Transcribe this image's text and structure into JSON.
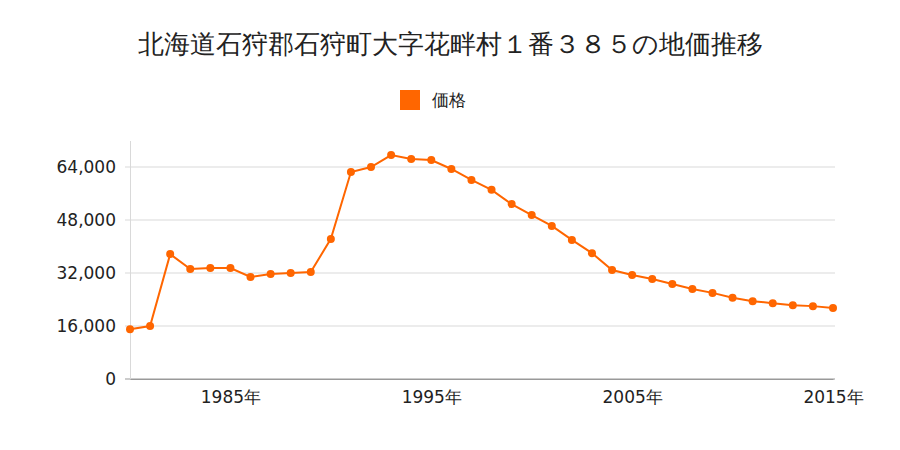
{
  "chart_data": {
    "type": "line",
    "title": "北海道石狩郡石狩町大字花畔村１番３８５の地価推移",
    "x": [
      1980,
      1981,
      1982,
      1983,
      1984,
      1985,
      1986,
      1987,
      1988,
      1989,
      1990,
      1991,
      1992,
      1993,
      1994,
      1995,
      1996,
      1997,
      1998,
      1999,
      2000,
      2001,
      2002,
      2003,
      2004,
      2005,
      2006,
      2007,
      2008,
      2009,
      2010,
      2011,
      2012,
      2013,
      2014,
      2015
    ],
    "series": [
      {
        "name": "価格",
        "color": "#ff6600",
        "marker": "circle",
        "line_style": "solid",
        "values": [
          15000,
          16000,
          37700,
          33200,
          33500,
          33500,
          30800,
          31700,
          32000,
          32300,
          42300,
          62500,
          64000,
          67600,
          66400,
          66100,
          63400,
          60100,
          57100,
          52800,
          49500,
          46200,
          42000,
          38000,
          32900,
          31400,
          30200,
          28700,
          27200,
          26000,
          24500,
          23500,
          22900,
          22300,
          22000,
          21400
        ]
      }
    ],
    "xlim": [
      1980,
      2015
    ],
    "xticks": [
      {
        "value": 1985,
        "label": "1985年"
      },
      {
        "value": 1995,
        "label": "1995年"
      },
      {
        "value": 2005,
        "label": "2005年"
      },
      {
        "value": 2015,
        "label": "2015年"
      }
    ],
    "ylim": [
      0,
      72000
    ],
    "yticks": [
      0,
      {
        "value": 16000,
        "label": "16,000"
      },
      {
        "value": 32000,
        "label": "32,000"
      },
      {
        "value": 48000,
        "label": "48,000"
      },
      {
        "value": 64000,
        "label": "64,000"
      }
    ],
    "grid": true,
    "legend": "top"
  }
}
